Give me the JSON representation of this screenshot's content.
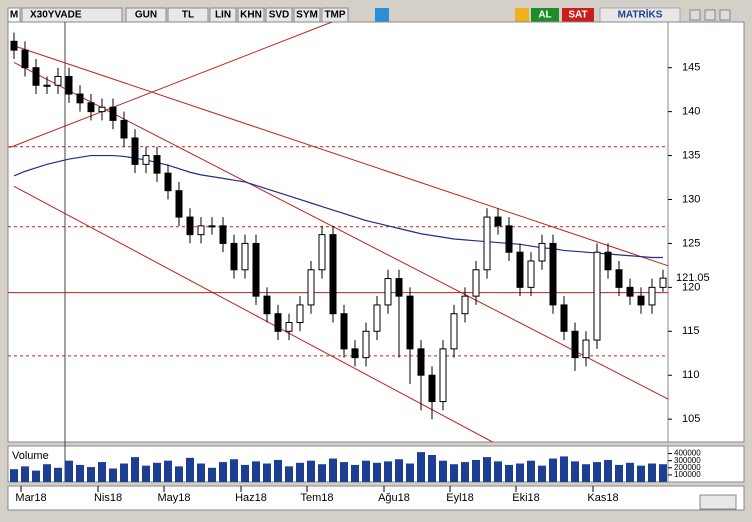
{
  "toolbar": {
    "logo": "M",
    "symbol": "X30YVADE",
    "buttons": [
      "GUN",
      "TL",
      "LIN",
      "KHN",
      "SVD",
      "SYM",
      "TMP"
    ],
    "buy": "AL",
    "sell": "SAT",
    "brand": "MATRİKS"
  },
  "chart_data": {
    "type": "candlestick",
    "categories": [
      null,
      "Mar18",
      null,
      null,
      null,
      null,
      null,
      null,
      "Nis18",
      null,
      null,
      null,
      null,
      null,
      "May18",
      null,
      null,
      null,
      null,
      null,
      null,
      "Haz18",
      null,
      null,
      null,
      null,
      null,
      "Tem18",
      null,
      null,
      null,
      null,
      null,
      null,
      "Ağu18",
      null,
      null,
      null,
      null,
      null,
      "Eyl18",
      null,
      null,
      null,
      null,
      null,
      "Eki18",
      null,
      null,
      null,
      null,
      null,
      null,
      "Kas18",
      null,
      null,
      null,
      null,
      null,
      null
    ],
    "open": [
      148,
      147,
      145,
      143,
      143,
      144,
      142,
      141,
      140,
      140.5,
      139,
      137,
      134,
      135,
      133,
      131,
      128,
      126,
      127,
      127,
      125,
      122,
      125,
      119,
      117,
      115,
      116,
      118,
      122,
      126,
      117,
      113,
      112,
      115,
      118,
      121,
      119,
      113,
      110,
      107,
      113,
      117,
      119,
      122,
      128,
      127,
      124,
      120,
      123,
      125,
      118,
      115,
      112,
      114,
      124,
      122,
      120,
      119,
      118,
      120
    ],
    "high": [
      149,
      148,
      146,
      144,
      145,
      145,
      143,
      142,
      141.5,
      141.5,
      140,
      138,
      136,
      136,
      134,
      132,
      129,
      128,
      128,
      128,
      126,
      126,
      126,
      120,
      118,
      117,
      119,
      123,
      127,
      127,
      118,
      114,
      116,
      119,
      122,
      122,
      120,
      114,
      111,
      114,
      118,
      120,
      123,
      129,
      129,
      128,
      125,
      124,
      126,
      126,
      119,
      116,
      115,
      125,
      125,
      123,
      121,
      120,
      121,
      122
    ],
    "low": [
      146,
      144,
      142,
      142,
      142,
      141,
      140,
      139,
      139,
      138,
      136,
      133,
      133,
      132,
      130,
      127,
      125,
      125,
      126,
      124,
      121,
      121,
      118,
      116,
      114,
      114,
      115,
      117,
      121,
      116,
      112,
      111,
      111,
      114,
      117,
      112,
      109,
      106,
      105,
      106,
      112,
      116,
      118,
      121,
      126,
      123,
      119,
      119,
      122,
      117,
      114,
      110.5,
      111,
      113,
      121,
      119,
      118,
      117,
      117,
      119.5
    ],
    "close": [
      147,
      145,
      143,
      143,
      144,
      142,
      141,
      140,
      140.5,
      139,
      137,
      134,
      135,
      133,
      131,
      128,
      126,
      127,
      127,
      125,
      122,
      125,
      119,
      117,
      115,
      116,
      118,
      122,
      126,
      117,
      113,
      112,
      115,
      118,
      121,
      119,
      113,
      110,
      107,
      113,
      117,
      119,
      122,
      128,
      127,
      124,
      120,
      123,
      125,
      118,
      115,
      112,
      114,
      124,
      122,
      120,
      119,
      118,
      120,
      121.05
    ],
    "ma": [
      132.7,
      133.2,
      133.6,
      134,
      134.3,
      134.6,
      134.8,
      135,
      135,
      135,
      134.9,
      134.7,
      134.5,
      134.2,
      133.9,
      133.5,
      133.1,
      132.8,
      132.6,
      132.4,
      132.2,
      132,
      131.6,
      131.2,
      130.8,
      130.4,
      130,
      129.6,
      129.2,
      128.8,
      128.4,
      128,
      127.6,
      127.3,
      127,
      126.7,
      126.4,
      126.1,
      125.9,
      125.7,
      125.5,
      125.4,
      125.3,
      125.2,
      125.1,
      125,
      124.9,
      124.7,
      124.5,
      124.4,
      124.2,
      124.1,
      124,
      123.9,
      123.8,
      123.7,
      123.6,
      123.5,
      123.4,
      123.4
    ],
    "ma_color": "#1f2e8c",
    "volume_label": "Volume",
    "volume": [
      180000,
      220000,
      160000,
      250000,
      200000,
      300000,
      240000,
      210000,
      280000,
      190000,
      260000,
      350000,
      230000,
      270000,
      300000,
      220000,
      340000,
      260000,
      200000,
      280000,
      320000,
      240000,
      290000,
      260000,
      310000,
      220000,
      270000,
      300000,
      250000,
      330000,
      280000,
      240000,
      300000,
      270000,
      290000,
      320000,
      260000,
      420000,
      380000,
      300000,
      250000,
      280000,
      310000,
      350000,
      290000,
      240000,
      260000,
      300000,
      230000,
      330000,
      360000,
      290000,
      250000,
      280000,
      310000,
      240000,
      270000,
      230000,
      260000,
      250000
    ],
    "volume_color": "#1c3f94",
    "vlim": [
      0,
      450000
    ],
    "vticks": [
      100000,
      200000,
      300000,
      400000
    ],
    "ylim": [
      102.4,
      150.2
    ],
    "yticks": [
      105,
      110,
      115,
      120,
      125,
      130,
      135,
      140,
      145
    ],
    "trendlines": [
      {
        "x": [
          0,
          59.6
        ],
        "y": [
          147.5,
          122.4
        ]
      },
      {
        "x": [
          -0.4,
          28.9
        ],
        "y": [
          135.9,
          150.2
        ]
      },
      {
        "x": [
          0,
          59.6
        ],
        "y": [
          145.6,
          107.2
        ]
      },
      {
        "x": [
          0,
          43.5
        ],
        "y": [
          131.5,
          102.4
        ]
      }
    ],
    "levels_dashed": [
      136,
      126.9,
      112.2
    ],
    "level_solid": 119.4,
    "line_color": "#c0201c"
  }
}
